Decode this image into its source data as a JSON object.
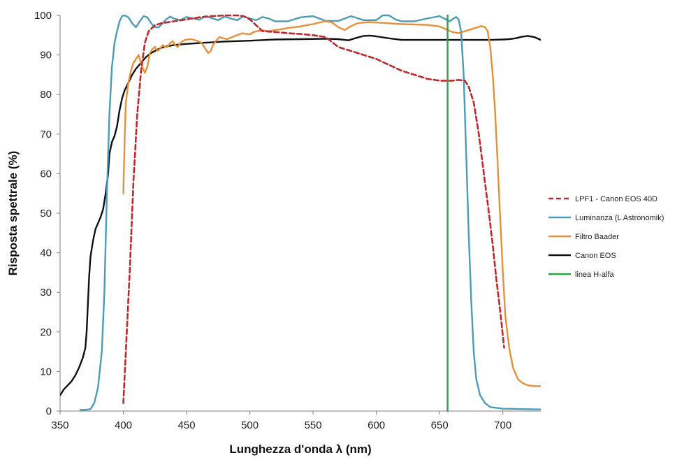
{
  "chart_data": {
    "type": "line",
    "title": "",
    "xlabel": "Lunghezza d'onda λ (nm)",
    "ylabel": "Risposta spettrale (%)",
    "xlim": [
      350,
      730
    ],
    "ylim": [
      0,
      100
    ],
    "x_ticks": [
      350,
      400,
      450,
      500,
      550,
      600,
      650,
      700
    ],
    "y_ticks": [
      0,
      10,
      20,
      30,
      40,
      50,
      60,
      70,
      80,
      90,
      100
    ],
    "grid": false,
    "legend_position": "right",
    "series": [
      {
        "name": "LPF1 - Canon EOS 40D",
        "color": "#c0282d",
        "dash": "dashed",
        "points": [
          [
            400,
            2
          ],
          [
            402,
            15
          ],
          [
            405,
            35
          ],
          [
            408,
            58
          ],
          [
            411,
            75
          ],
          [
            414,
            86
          ],
          [
            417,
            93
          ],
          [
            420,
            96
          ],
          [
            425,
            97.5
          ],
          [
            430,
            98
          ],
          [
            440,
            98.5
          ],
          [
            450,
            99
          ],
          [
            460,
            99.5
          ],
          [
            470,
            99.8
          ],
          [
            480,
            100
          ],
          [
            490,
            100
          ],
          [
            495,
            99.8
          ],
          [
            500,
            99
          ],
          [
            505,
            97.5
          ],
          [
            510,
            96
          ],
          [
            520,
            95.8
          ],
          [
            530,
            95.5
          ],
          [
            540,
            95.3
          ],
          [
            550,
            95
          ],
          [
            560,
            94.5
          ],
          [
            570,
            92
          ],
          [
            580,
            91
          ],
          [
            590,
            90
          ],
          [
            600,
            89
          ],
          [
            610,
            87.5
          ],
          [
            620,
            86
          ],
          [
            630,
            85
          ],
          [
            640,
            84
          ],
          [
            650,
            83.5
          ],
          [
            660,
            83.5
          ],
          [
            665,
            83.7
          ],
          [
            670,
            83.5
          ],
          [
            673,
            82
          ],
          [
            677,
            78
          ],
          [
            681,
            70
          ],
          [
            685,
            60
          ],
          [
            689,
            50
          ],
          [
            692,
            42
          ],
          [
            695,
            33
          ],
          [
            698,
            25
          ],
          [
            701,
            16
          ]
        ]
      },
      {
        "name": "Luminanza (L Astronomik)",
        "color": "#4a9db5",
        "dash": "solid",
        "points": [
          [
            366,
            0.3
          ],
          [
            370,
            0.3
          ],
          [
            374,
            0.5
          ],
          [
            377,
            2
          ],
          [
            380,
            6
          ],
          [
            383,
            15
          ],
          [
            385,
            30
          ],
          [
            387,
            55
          ],
          [
            389,
            75
          ],
          [
            391,
            87
          ],
          [
            393,
            93
          ],
          [
            395,
            96
          ],
          [
            397,
            98.5
          ],
          [
            399,
            99.8
          ],
          [
            401,
            100
          ],
          [
            404,
            99.5
          ],
          [
            407,
            98
          ],
          [
            410,
            97
          ],
          [
            413,
            98.5
          ],
          [
            416,
            99.8
          ],
          [
            419,
            99.5
          ],
          [
            422,
            98
          ],
          [
            425,
            97
          ],
          [
            428,
            97
          ],
          [
            431,
            98
          ],
          [
            434,
            99
          ],
          [
            437,
            99.7
          ],
          [
            440,
            99.2
          ],
          [
            445,
            98.8
          ],
          [
            450,
            99.6
          ],
          [
            455,
            99.2
          ],
          [
            460,
            98.9
          ],
          [
            465,
            99.8
          ],
          [
            470,
            99.3
          ],
          [
            475,
            98.8
          ],
          [
            480,
            99.7
          ],
          [
            485,
            99.2
          ],
          [
            490,
            98.8
          ],
          [
            495,
            99.8
          ],
          [
            500,
            99.2
          ],
          [
            505,
            98.8
          ],
          [
            510,
            99.6
          ],
          [
            515,
            99.2
          ],
          [
            520,
            98.5
          ],
          [
            530,
            98.5
          ],
          [
            540,
            99.5
          ],
          [
            550,
            99.8
          ],
          [
            560,
            98.6
          ],
          [
            570,
            98.6
          ],
          [
            580,
            99.8
          ],
          [
            590,
            98.8
          ],
          [
            600,
            98.8
          ],
          [
            605,
            100
          ],
          [
            610,
            100
          ],
          [
            615,
            99
          ],
          [
            620,
            98.5
          ],
          [
            630,
            98.5
          ],
          [
            640,
            99.2
          ],
          [
            650,
            99.8
          ],
          [
            655,
            99
          ],
          [
            658,
            98.5
          ],
          [
            661,
            99.2
          ],
          [
            663,
            99.6
          ],
          [
            665,
            99
          ],
          [
            667,
            96
          ],
          [
            669,
            85
          ],
          [
            671,
            65
          ],
          [
            673,
            45
          ],
          [
            675,
            28
          ],
          [
            677,
            15
          ],
          [
            679,
            8
          ],
          [
            682,
            4
          ],
          [
            686,
            2
          ],
          [
            690,
            1
          ],
          [
            700,
            0.6
          ],
          [
            715,
            0.5
          ],
          [
            730,
            0.4
          ]
        ]
      },
      {
        "name": "Filtro Baader",
        "color": "#e6913a",
        "dash": "solid",
        "points": [
          [
            400,
            55
          ],
          [
            401,
            68
          ],
          [
            402,
            78
          ],
          [
            404,
            83
          ],
          [
            406,
            86
          ],
          [
            408,
            88
          ],
          [
            410,
            89
          ],
          [
            412,
            90
          ],
          [
            413,
            89
          ],
          [
            415,
            87
          ],
          [
            417,
            85.5
          ],
          [
            419,
            87
          ],
          [
            421,
            90.5
          ],
          [
            423,
            91.5
          ],
          [
            425,
            92
          ],
          [
            427,
            91
          ],
          [
            429,
            91.5
          ],
          [
            431,
            92.5
          ],
          [
            433,
            92
          ],
          [
            435,
            92
          ],
          [
            437,
            93
          ],
          [
            439,
            93.5
          ],
          [
            441,
            92.5
          ],
          [
            443,
            92
          ],
          [
            445,
            93
          ],
          [
            447,
            93.5
          ],
          [
            449,
            93.8
          ],
          [
            451,
            93.9
          ],
          [
            453,
            94
          ],
          [
            456,
            93.8
          ],
          [
            459,
            93.5
          ],
          [
            462,
            93
          ],
          [
            465,
            91.5
          ],
          [
            467,
            90.5
          ],
          [
            469,
            91
          ],
          [
            471,
            92.5
          ],
          [
            473,
            93.5
          ],
          [
            476,
            94.5
          ],
          [
            479,
            94.2
          ],
          [
            482,
            94
          ],
          [
            486,
            94.5
          ],
          [
            490,
            95
          ],
          [
            494,
            95.5
          ],
          [
            497,
            95.3
          ],
          [
            500,
            95.2
          ],
          [
            503,
            95.8
          ],
          [
            506,
            96
          ],
          [
            510,
            96.2
          ],
          [
            515,
            96
          ],
          [
            520,
            96.3
          ],
          [
            525,
            96.5
          ],
          [
            530,
            96.8
          ],
          [
            535,
            97
          ],
          [
            540,
            97.2
          ],
          [
            545,
            97.5
          ],
          [
            550,
            97.8
          ],
          [
            555,
            98.2
          ],
          [
            560,
            98.5
          ],
          [
            565,
            98.2
          ],
          [
            570,
            97
          ],
          [
            575,
            96.3
          ],
          [
            580,
            97.3
          ],
          [
            585,
            98
          ],
          [
            590,
            98.2
          ],
          [
            595,
            98.3
          ],
          [
            600,
            98.2
          ],
          [
            610,
            98
          ],
          [
            620,
            97.8
          ],
          [
            630,
            97.7
          ],
          [
            640,
            97.6
          ],
          [
            650,
            97.2
          ],
          [
            655,
            96.5
          ],
          [
            660,
            95.8
          ],
          [
            665,
            95.5
          ],
          [
            670,
            96
          ],
          [
            675,
            96.5
          ],
          [
            680,
            97
          ],
          [
            683,
            97.3
          ],
          [
            686,
            97
          ],
          [
            688,
            96
          ],
          [
            690,
            92
          ],
          [
            692,
            85
          ],
          [
            694,
            75
          ],
          [
            696,
            62
          ],
          [
            698,
            48
          ],
          [
            700,
            35
          ],
          [
            702,
            24
          ],
          [
            705,
            16
          ],
          [
            708,
            11
          ],
          [
            712,
            8
          ],
          [
            716,
            7
          ],
          [
            720,
            6.5
          ],
          [
            725,
            6.3
          ],
          [
            730,
            6.3
          ]
        ]
      },
      {
        "name": "Canon EOS",
        "color": "#111111",
        "dash": "solid",
        "points": [
          [
            350,
            4
          ],
          [
            353,
            5.5
          ],
          [
            356,
            6.5
          ],
          [
            359,
            7.5
          ],
          [
            362,
            9
          ],
          [
            365,
            11
          ],
          [
            368,
            13.5
          ],
          [
            370,
            16
          ],
          [
            371,
            20
          ],
          [
            372,
            27
          ],
          [
            373,
            34
          ],
          [
            374,
            39
          ],
          [
            376,
            43
          ],
          [
            378,
            46
          ],
          [
            380,
            47.5
          ],
          [
            382,
            49
          ],
          [
            384,
            51
          ],
          [
            386,
            55
          ],
          [
            388,
            60
          ],
          [
            389,
            65
          ],
          [
            391,
            68
          ],
          [
            393,
            69.5
          ],
          [
            395,
            72
          ],
          [
            397,
            76
          ],
          [
            399,
            79
          ],
          [
            401,
            81
          ],
          [
            404,
            83
          ],
          [
            407,
            85
          ],
          [
            410,
            86.5
          ],
          [
            414,
            88
          ],
          [
            418,
            89.5
          ],
          [
            422,
            90.5
          ],
          [
            426,
            91.2
          ],
          [
            430,
            91.8
          ],
          [
            435,
            92.2
          ],
          [
            440,
            92.5
          ],
          [
            450,
            92.8
          ],
          [
            460,
            93
          ],
          [
            480,
            93.4
          ],
          [
            500,
            93.6
          ],
          [
            520,
            93.9
          ],
          [
            540,
            94
          ],
          [
            560,
            94.1
          ],
          [
            570,
            94
          ],
          [
            578,
            93.7
          ],
          [
            584,
            94.3
          ],
          [
            590,
            94.8
          ],
          [
            595,
            94.9
          ],
          [
            600,
            94.7
          ],
          [
            610,
            94.2
          ],
          [
            620,
            93.8
          ],
          [
            630,
            93.8
          ],
          [
            650,
            93.8
          ],
          [
            670,
            93.8
          ],
          [
            690,
            93.8
          ],
          [
            700,
            93.9
          ],
          [
            705,
            94
          ],
          [
            710,
            94.2
          ],
          [
            715,
            94.6
          ],
          [
            720,
            94.8
          ],
          [
            725,
            94.5
          ],
          [
            730,
            93.8
          ]
        ]
      },
      {
        "name": "linea H-alfa",
        "color": "#20a945",
        "dash": "solid",
        "points": [
          [
            656.3,
            0
          ],
          [
            656.3,
            100
          ]
        ]
      }
    ]
  }
}
